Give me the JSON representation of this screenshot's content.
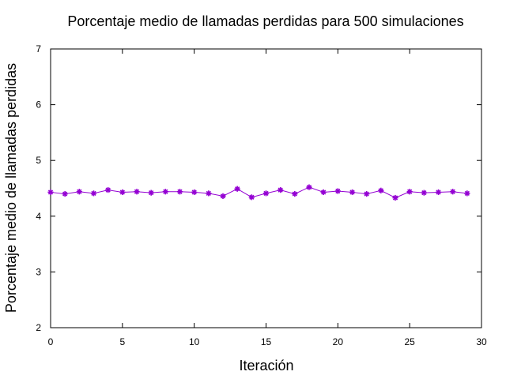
{
  "chart_data": {
    "type": "line",
    "title": "Porcentaje medio de llamadas perdidas para 500 simulaciones",
    "xlabel": "Iteración",
    "ylabel": "Porcentaje medio de llamadas perdidas",
    "xlim": [
      0,
      30
    ],
    "ylim": [
      2,
      7
    ],
    "xticks": [
      0,
      5,
      10,
      15,
      20,
      25,
      30
    ],
    "yticks": [
      2,
      3,
      4,
      5,
      6,
      7
    ],
    "grid": false,
    "legend": "none",
    "series": [
      {
        "color": "#9400d3",
        "marker": "star",
        "x": [
          0,
          1,
          2,
          3,
          4,
          5,
          6,
          7,
          8,
          9,
          10,
          11,
          12,
          13,
          14,
          15,
          16,
          17,
          18,
          19,
          20,
          21,
          22,
          23,
          24,
          25,
          26,
          27,
          28,
          29
        ],
        "y": [
          4.43,
          4.4,
          4.44,
          4.41,
          4.47,
          4.43,
          4.44,
          4.42,
          4.44,
          4.44,
          4.43,
          4.41,
          4.36,
          4.49,
          4.34,
          4.41,
          4.47,
          4.4,
          4.52,
          4.43,
          4.45,
          4.43,
          4.4,
          4.46,
          4.33,
          4.44,
          4.42,
          4.43,
          4.44,
          4.41
        ]
      }
    ]
  }
}
